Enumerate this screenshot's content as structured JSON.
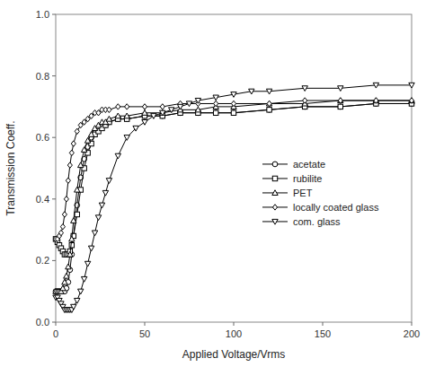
{
  "chart_data": {
    "type": "line",
    "xlabel": "Applied Voltage/Vrms",
    "ylabel": "Transmission Coeff.",
    "xlim": [
      0,
      200
    ],
    "ylim": [
      0.0,
      1.0
    ],
    "xticks": [
      0,
      50,
      100,
      150,
      200
    ],
    "yticks": [
      {
        "value": 0.0,
        "label": "0.0"
      },
      0.2,
      0.4,
      0.6,
      0.8,
      {
        "value": 1.0,
        "label": "1.0"
      }
    ],
    "grid": false,
    "legend": "center right",
    "series": [
      {
        "name": "acetate",
        "color": "#000000",
        "marker": "circle",
        "x": [
          0,
          1,
          2,
          3,
          4,
          5,
          6,
          7,
          8,
          9,
          10,
          12,
          14,
          16,
          18,
          20,
          22,
          24,
          26,
          28,
          30,
          35,
          40,
          50,
          60,
          70,
          80,
          90,
          100,
          120,
          140,
          160,
          180,
          200
        ],
        "values": [
          0.1,
          0.1,
          0.1,
          0.1,
          0.1,
          0.1,
          0.11,
          0.13,
          0.17,
          0.22,
          0.28,
          0.38,
          0.47,
          0.53,
          0.57,
          0.6,
          0.62,
          0.63,
          0.64,
          0.64,
          0.65,
          0.66,
          0.66,
          0.67,
          0.67,
          0.68,
          0.68,
          0.68,
          0.68,
          0.69,
          0.7,
          0.7,
          0.71,
          0.71
        ]
      },
      {
        "name": "rubilite",
        "color": "#000000",
        "marker": "square",
        "x": [
          0,
          1,
          2,
          3,
          4,
          5,
          6,
          7,
          8,
          9,
          10,
          12,
          14,
          16,
          18,
          20,
          22,
          24,
          26,
          28,
          30,
          35,
          40,
          50,
          60,
          70,
          80,
          90,
          100,
          120,
          140,
          160,
          180,
          200
        ],
        "values": [
          0.27,
          0.26,
          0.25,
          0.24,
          0.23,
          0.22,
          0.22,
          0.22,
          0.23,
          0.25,
          0.28,
          0.35,
          0.43,
          0.5,
          0.55,
          0.58,
          0.61,
          0.62,
          0.63,
          0.64,
          0.65,
          0.66,
          0.66,
          0.67,
          0.67,
          0.68,
          0.68,
          0.68,
          0.68,
          0.69,
          0.7,
          0.7,
          0.71,
          0.71
        ]
      },
      {
        "name": "PET",
        "color": "#000000",
        "marker": "triangle-up",
        "x": [
          0,
          1,
          2,
          3,
          4,
          5,
          6,
          7,
          8,
          9,
          10,
          12,
          14,
          16,
          18,
          20,
          22,
          24,
          26,
          28,
          30,
          35,
          40,
          50,
          60,
          70,
          80,
          90,
          100,
          120,
          140,
          160,
          180,
          200
        ],
        "values": [
          0.1,
          0.1,
          0.1,
          0.1,
          0.11,
          0.13,
          0.15,
          0.18,
          0.22,
          0.27,
          0.33,
          0.43,
          0.51,
          0.56,
          0.59,
          0.61,
          0.63,
          0.64,
          0.65,
          0.65,
          0.66,
          0.67,
          0.67,
          0.68,
          0.68,
          0.69,
          0.69,
          0.7,
          0.7,
          0.71,
          0.71,
          0.72,
          0.72,
          0.72
        ]
      },
      {
        "name": "locally coated glass",
        "color": "#000000",
        "marker": "diamond",
        "x": [
          0,
          1,
          2,
          3,
          4,
          5,
          6,
          7,
          8,
          9,
          10,
          12,
          14,
          16,
          18,
          20,
          22,
          24,
          26,
          28,
          30,
          35,
          40,
          50,
          60,
          70,
          80,
          90,
          100,
          120,
          140,
          160,
          180,
          200
        ],
        "values": [
          0.27,
          0.27,
          0.28,
          0.29,
          0.31,
          0.35,
          0.4,
          0.46,
          0.51,
          0.55,
          0.58,
          0.62,
          0.64,
          0.65,
          0.66,
          0.67,
          0.68,
          0.68,
          0.69,
          0.69,
          0.69,
          0.7,
          0.7,
          0.7,
          0.7,
          0.71,
          0.71,
          0.71,
          0.71,
          0.71,
          0.72,
          0.72,
          0.72,
          0.72
        ]
      },
      {
        "name": "com. glass",
        "color": "#000000",
        "marker": "triangle-down",
        "x": [
          0,
          1,
          2,
          3,
          4,
          5,
          6,
          7,
          8,
          9,
          10,
          12,
          14,
          16,
          18,
          20,
          22,
          24,
          26,
          28,
          30,
          35,
          40,
          45,
          50,
          55,
          60,
          65,
          70,
          75,
          80,
          90,
          100,
          110,
          120,
          140,
          160,
          180,
          200
        ],
        "values": [
          0.08,
          0.08,
          0.07,
          0.06,
          0.05,
          0.04,
          0.04,
          0.04,
          0.04,
          0.04,
          0.05,
          0.07,
          0.1,
          0.14,
          0.19,
          0.24,
          0.29,
          0.34,
          0.38,
          0.42,
          0.46,
          0.54,
          0.6,
          0.63,
          0.65,
          0.67,
          0.68,
          0.69,
          0.7,
          0.71,
          0.72,
          0.73,
          0.74,
          0.75,
          0.75,
          0.76,
          0.76,
          0.77,
          0.77
        ]
      }
    ]
  }
}
